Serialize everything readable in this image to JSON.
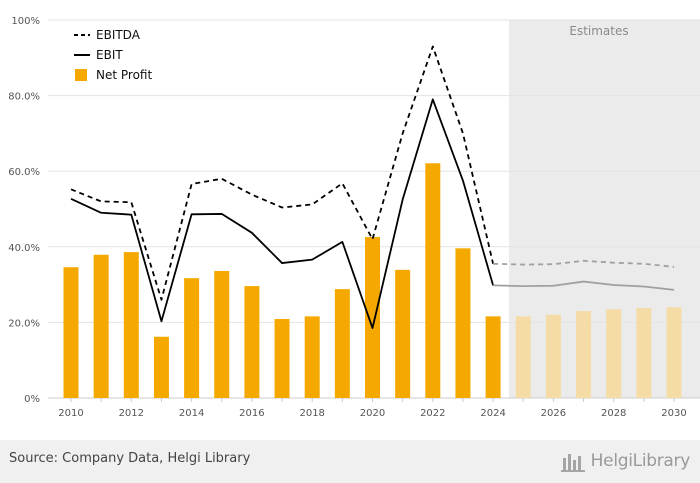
{
  "chart_data": {
    "type": "bar",
    "categories": [
      "2010",
      "2011",
      "2012",
      "2013",
      "2014",
      "2015",
      "2016",
      "2017",
      "2018",
      "2019",
      "2020",
      "2021",
      "2022",
      "2023",
      "2024",
      "2025",
      "2026",
      "2027",
      "2028",
      "2029",
      "2030"
    ],
    "estimates_from": "2025",
    "estimates_label": "Estimates",
    "y_unit": "%",
    "ylim": [
      0,
      100
    ],
    "y_ticks": [
      "0%",
      "20.0%",
      "40.0%",
      "60.0%",
      "80.0%",
      "100%"
    ],
    "y_tick_values": [
      0,
      20,
      40,
      60,
      80,
      100
    ],
    "x_ticks": [
      "2010",
      "2012",
      "2014",
      "2016",
      "2018",
      "2020",
      "2022",
      "2024",
      "2026",
      "2028",
      "2030"
    ],
    "grid": true,
    "legend_position": "top-left",
    "series": [
      {
        "name": "EBITDA",
        "style": "dashed-line",
        "color": "#000000",
        "values": [
          55.2,
          52.0,
          51.8,
          26.0,
          56.6,
          58.0,
          53.8,
          50.4,
          51.2,
          56.8,
          42.0,
          70.0,
          93.0,
          70.0,
          35.5,
          35.3,
          35.4,
          36.3,
          35.8,
          35.5,
          34.7
        ]
      },
      {
        "name": "EBIT",
        "style": "solid-line",
        "color": "#000000",
        "values": [
          52.7,
          49.0,
          48.5,
          20.3,
          48.6,
          48.7,
          43.7,
          35.7,
          36.6,
          41.3,
          18.5,
          52.5,
          79.0,
          57.5,
          29.8,
          29.6,
          29.7,
          30.8,
          29.9,
          29.5,
          28.6
        ]
      },
      {
        "name": "Net Profit",
        "style": "bar",
        "color": "#f5a900",
        "values": [
          34.6,
          37.9,
          38.6,
          16.2,
          31.7,
          33.6,
          29.6,
          20.9,
          21.6,
          28.8,
          42.6,
          33.9,
          62.1,
          39.6,
          21.6,
          21.6,
          22.0,
          23.0,
          23.5,
          23.8,
          24.0
        ]
      }
    ],
    "estimate_bar_color": "#f5dca6",
    "estimate_line_color": "#a0a0a0"
  },
  "footer": {
    "source": "Source: Company Data, Helgi Library",
    "brand": "HelgiLibrary"
  }
}
